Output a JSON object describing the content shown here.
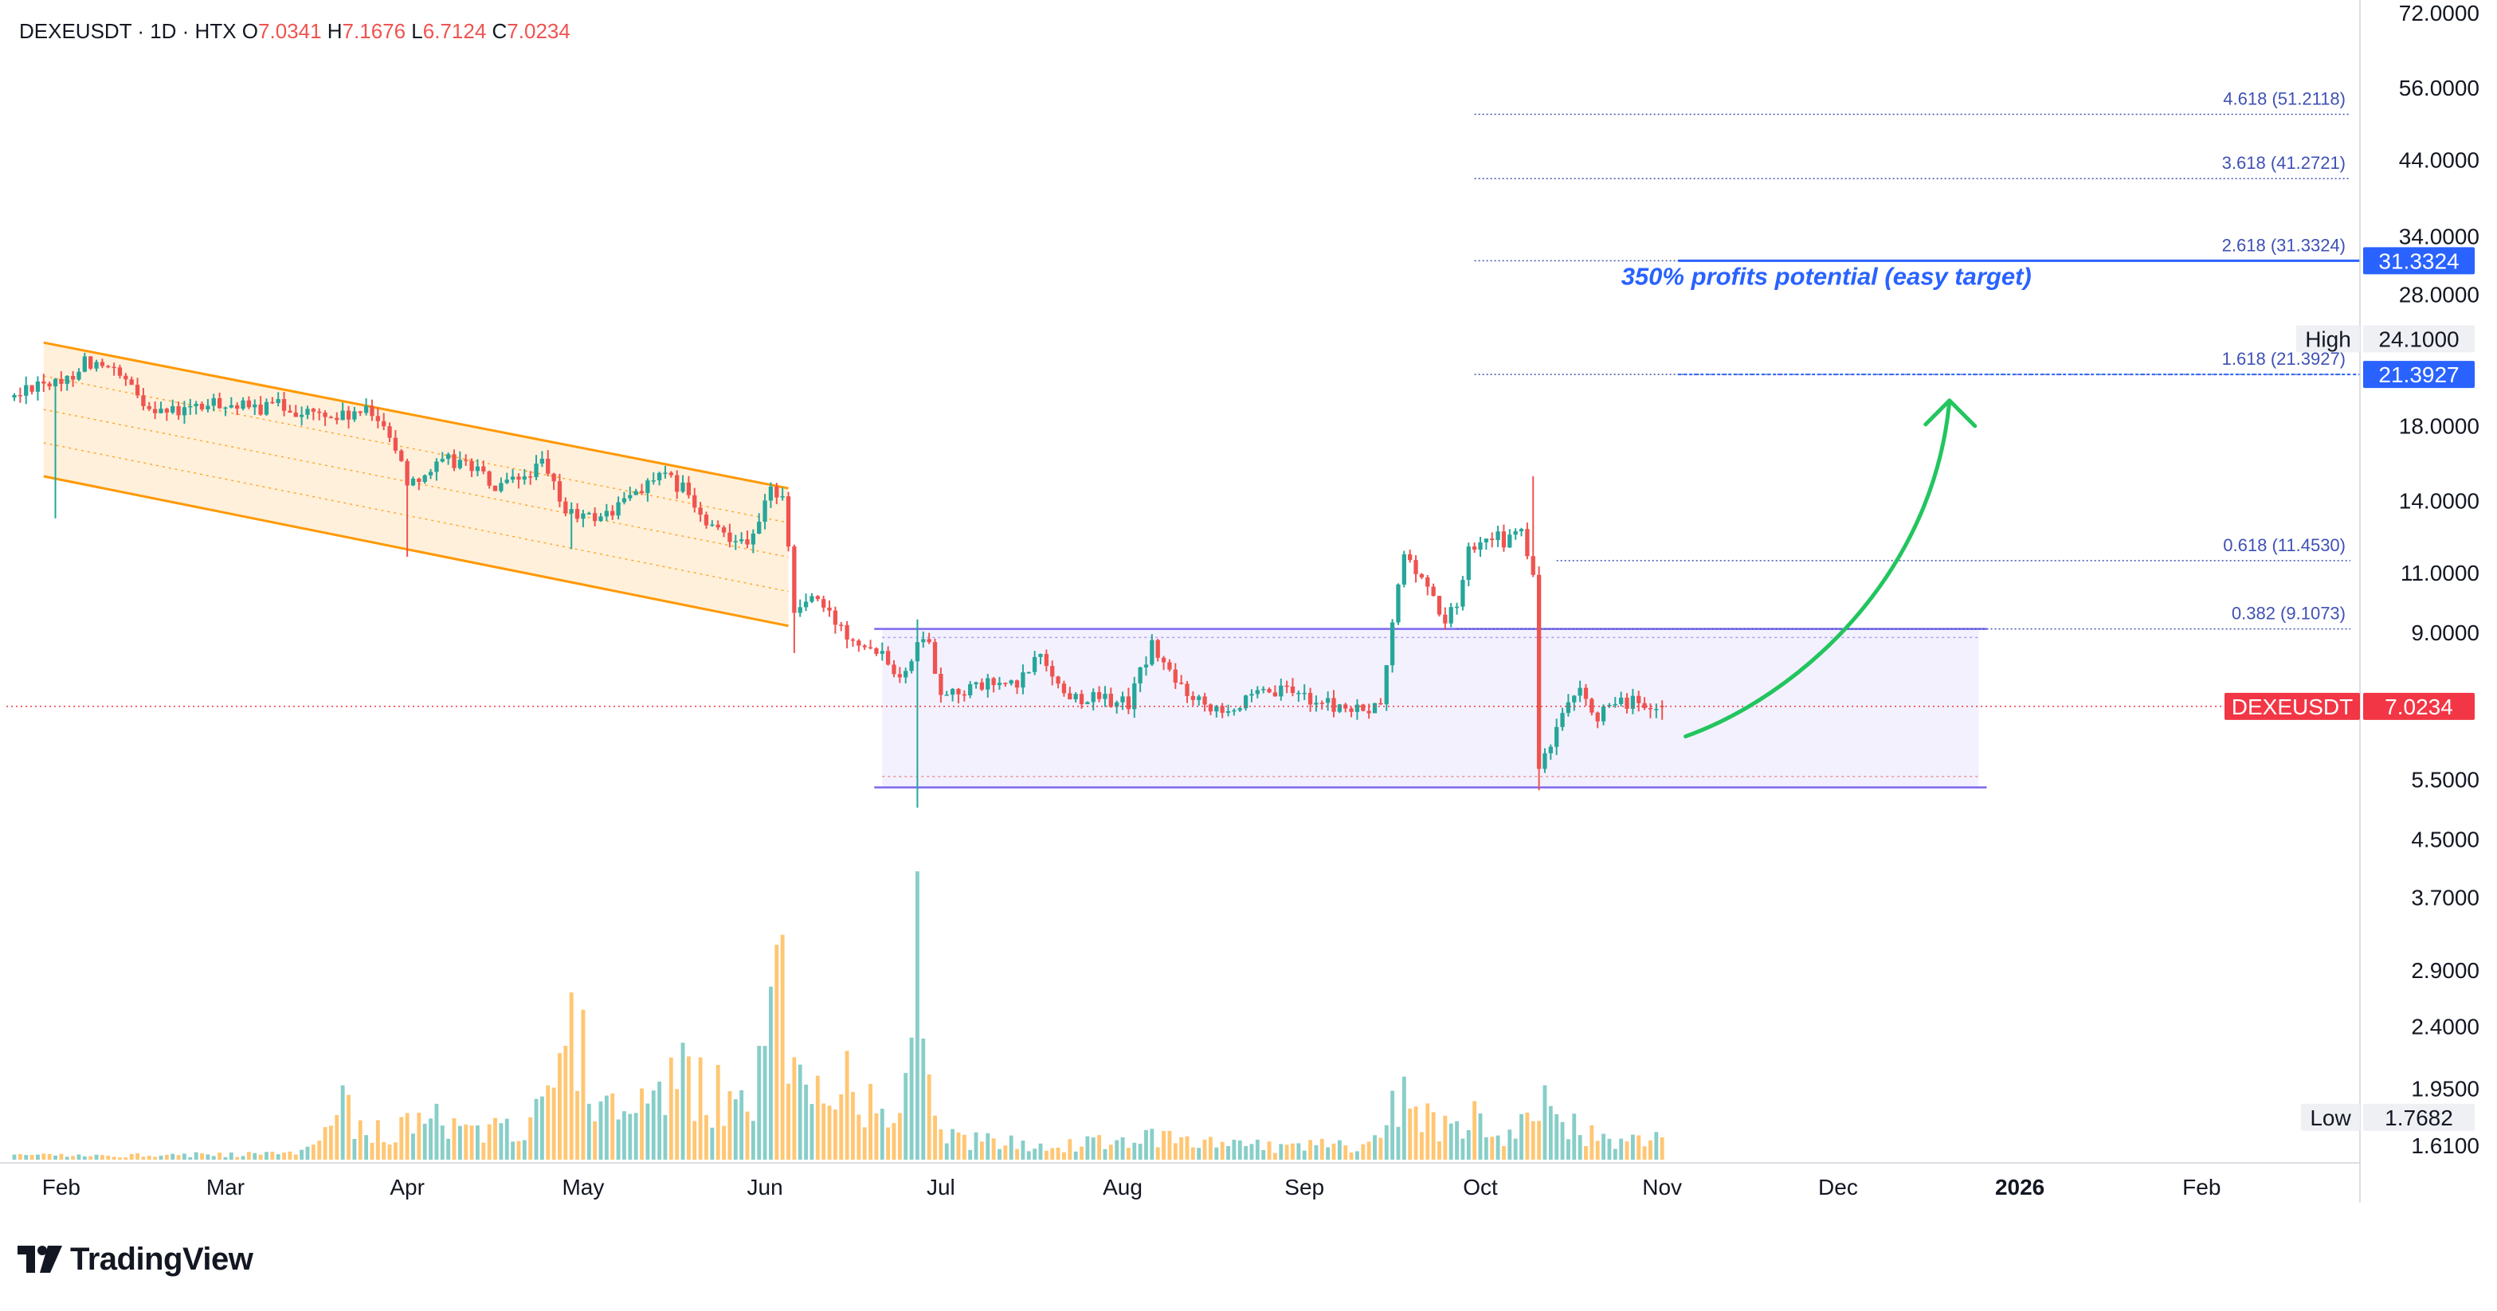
{
  "header": {
    "symbol": "DEXEUSDT · 1D · HTX",
    "o_label": "O",
    "o_value": "7.0341",
    "h_label": "H",
    "h_value": "7.1676",
    "l_label": "L",
    "l_value": "6.7124",
    "c_label": "C",
    "c_value": "7.0234"
  },
  "brand": {
    "name": "TradingView"
  },
  "colors": {
    "up": "#26a69a",
    "down": "#ef5350",
    "channel": "#ff9800",
    "fib": "#3f51b5",
    "range": "#7b68ee",
    "target_label": "#2962ff",
    "arrow": "#22c55e",
    "price_line": "#f23645"
  },
  "chart_data": {
    "type": "candlestick",
    "symbol": "DEXEUSDT",
    "timeframe": "1D",
    "exchange": "HTX",
    "y_scale": "log",
    "ylim": [
      1.61,
      72
    ],
    "xlim": [
      "2025-01-24",
      "2026-02-28"
    ],
    "y_ticks": [
      "72.0000",
      "56.0000",
      "44.0000",
      "34.0000",
      "28.0000",
      "18.0000",
      "14.0000",
      "11.0000",
      "9.0000",
      "5.5000",
      "4.5000",
      "3.7000",
      "2.9000",
      "2.4000",
      "1.9500",
      "1.6100"
    ],
    "x_ticks": [
      {
        "label": "Feb",
        "date": "2025-02-01",
        "bold": false
      },
      {
        "label": "Mar",
        "date": "2025-03-01",
        "bold": false
      },
      {
        "label": "Apr",
        "date": "2025-04-01",
        "bold": false
      },
      {
        "label": "May",
        "date": "2025-05-01",
        "bold": false
      },
      {
        "label": "Jun",
        "date": "2025-06-01",
        "bold": false
      },
      {
        "label": "Jul",
        "date": "2025-07-01",
        "bold": false
      },
      {
        "label": "Aug",
        "date": "2025-08-01",
        "bold": false
      },
      {
        "label": "Sep",
        "date": "2025-09-01",
        "bold": false
      },
      {
        "label": "Oct",
        "date": "2025-10-01",
        "bold": false
      },
      {
        "label": "Nov",
        "date": "2025-11-01",
        "bold": false
      },
      {
        "label": "Dec",
        "date": "2025-12-01",
        "bold": false
      },
      {
        "label": "2026",
        "date": "2026-01-01",
        "bold": true
      },
      {
        "label": "Feb",
        "date": "2026-02-01",
        "bold": false
      }
    ],
    "price_anchors": [
      [
        "2025-01-24",
        19.8
      ],
      [
        "2025-01-28",
        21.0
      ],
      [
        "2025-02-01",
        20.5
      ],
      [
        "2025-02-05",
        22.5
      ],
      [
        "2025-02-10",
        21.5
      ],
      [
        "2025-02-15",
        19.5
      ],
      [
        "2025-02-20",
        18.8
      ],
      [
        "2025-02-25",
        19.2
      ],
      [
        "2025-03-01",
        19.5
      ],
      [
        "2025-03-05",
        19.0
      ],
      [
        "2025-03-10",
        19.3
      ],
      [
        "2025-03-15",
        18.8
      ],
      [
        "2025-03-20",
        18.5
      ],
      [
        "2025-03-25",
        18.8
      ],
      [
        "2025-03-28",
        18.3
      ],
      [
        "2025-04-01",
        15.0
      ],
      [
        "2025-04-05",
        15.5
      ],
      [
        "2025-04-08",
        16.0
      ],
      [
        "2025-04-12",
        15.8
      ],
      [
        "2025-04-16",
        14.5
      ],
      [
        "2025-04-20",
        15.0
      ],
      [
        "2025-04-24",
        15.8
      ],
      [
        "2025-04-28",
        13.5
      ],
      [
        "2025-05-02",
        13.2
      ],
      [
        "2025-05-06",
        13.5
      ],
      [
        "2025-05-10",
        14.5
      ],
      [
        "2025-05-14",
        15.2
      ],
      [
        "2025-05-18",
        14.6
      ],
      [
        "2025-05-22",
        12.8
      ],
      [
        "2025-05-26",
        12.5
      ],
      [
        "2025-05-30",
        12.3
      ],
      [
        "2025-06-02",
        14.5
      ],
      [
        "2025-06-04",
        14.4
      ],
      [
        "2025-06-06",
        9.6
      ],
      [
        "2025-06-09",
        10.2
      ],
      [
        "2025-06-12",
        9.5
      ],
      [
        "2025-06-15",
        9.0
      ],
      [
        "2025-06-18",
        8.7
      ],
      [
        "2025-06-21",
        8.5
      ],
      [
        "2025-06-23",
        8.0
      ],
      [
        "2025-06-25",
        7.8
      ],
      [
        "2025-06-27",
        8.9
      ],
      [
        "2025-06-29",
        8.6
      ],
      [
        "2025-07-01",
        7.4
      ],
      [
        "2025-07-05",
        7.4
      ],
      [
        "2025-07-10",
        7.6
      ],
      [
        "2025-07-14",
        7.5
      ],
      [
        "2025-07-18",
        8.4
      ],
      [
        "2025-07-22",
        7.3
      ],
      [
        "2025-07-28",
        7.2
      ],
      [
        "2025-08-02",
        7.1
      ],
      [
        "2025-08-06",
        8.6
      ],
      [
        "2025-08-10",
        7.6
      ],
      [
        "2025-08-15",
        7.1
      ],
      [
        "2025-08-20",
        7.0
      ],
      [
        "2025-08-25",
        7.3
      ],
      [
        "2025-08-30",
        7.4
      ],
      [
        "2025-09-04",
        7.1
      ],
      [
        "2025-09-10",
        6.9
      ],
      [
        "2025-09-14",
        7.0
      ],
      [
        "2025-09-16",
        9.2
      ],
      [
        "2025-09-18",
        11.8
      ],
      [
        "2025-09-20",
        11.0
      ],
      [
        "2025-09-22",
        10.5
      ],
      [
        "2025-09-25",
        9.3
      ],
      [
        "2025-09-27",
        9.9
      ],
      [
        "2025-09-29",
        11.9
      ],
      [
        "2025-10-02",
        12.6
      ],
      [
        "2025-10-05",
        12.2
      ],
      [
        "2025-10-08",
        12.6
      ],
      [
        "2025-10-09",
        11.6
      ],
      [
        "2025-10-10",
        11.0
      ],
      [
        "2025-10-11",
        5.7
      ],
      [
        "2025-10-13",
        6.1
      ],
      [
        "2025-10-15",
        6.8
      ],
      [
        "2025-10-18",
        7.3
      ],
      [
        "2025-10-21",
        6.8
      ],
      [
        "2025-10-24",
        7.0
      ],
      [
        "2025-10-27",
        7.2
      ],
      [
        "2025-10-30",
        6.8
      ],
      [
        "2025-11-01",
        7.0234
      ]
    ],
    "wick_extremes": [
      {
        "date": "2025-01-31",
        "low": 13.2
      },
      {
        "date": "2025-04-01",
        "low": 11.6
      },
      {
        "date": "2025-04-29",
        "low": 11.9
      },
      {
        "date": "2025-06-06",
        "low": 8.4
      },
      {
        "date": "2025-06-27",
        "high": 9.4,
        "low": 5.0
      },
      {
        "date": "2025-10-10",
        "high": 15.2
      },
      {
        "date": "2025-10-11",
        "low": 5.3
      }
    ],
    "volume_anchors": [
      [
        "2025-01-24",
        0.015
      ],
      [
        "2025-03-10",
        0.02
      ],
      [
        "2025-03-17",
        0.05
      ],
      [
        "2025-03-21",
        0.2
      ],
      [
        "2025-03-24",
        0.13
      ],
      [
        "2025-03-28",
        0.1
      ],
      [
        "2025-04-03",
        0.16
      ],
      [
        "2025-04-10",
        0.11
      ],
      [
        "2025-04-20",
        0.12
      ],
      [
        "2025-04-25",
        0.18
      ],
      [
        "2025-04-29",
        0.4
      ],
      [
        "2025-05-03",
        0.22
      ],
      [
        "2025-05-08",
        0.28
      ],
      [
        "2025-05-13",
        0.18
      ],
      [
        "2025-05-18",
        0.3
      ],
      [
        "2025-05-25",
        0.22
      ],
      [
        "2025-05-31",
        0.3
      ],
      [
        "2025-06-04",
        0.65
      ],
      [
        "2025-06-08",
        0.28
      ],
      [
        "2025-06-13",
        0.3
      ],
      [
        "2025-06-18",
        0.22
      ],
      [
        "2025-06-23",
        0.12
      ],
      [
        "2025-06-27",
        0.35
      ],
      [
        "2025-07-02",
        0.08
      ],
      [
        "2025-07-15",
        0.06
      ],
      [
        "2025-07-22",
        0.05
      ],
      [
        "2025-08-06",
        0.08
      ],
      [
        "2025-08-20",
        0.05
      ],
      [
        "2025-09-10",
        0.05
      ],
      [
        "2025-09-14",
        0.08
      ],
      [
        "2025-09-17",
        0.24
      ],
      [
        "2025-09-20",
        0.2
      ],
      [
        "2025-09-25",
        0.12
      ],
      [
        "2025-09-30",
        0.15
      ],
      [
        "2025-10-05",
        0.1
      ],
      [
        "2025-10-10",
        0.15
      ],
      [
        "2025-10-12",
        0.22
      ],
      [
        "2025-10-16",
        0.12
      ],
      [
        "2025-10-22",
        0.08
      ],
      [
        "2025-11-01",
        0.08
      ]
    ],
    "volume_spikes": [
      {
        "date": "2025-06-02",
        "value": 0.6,
        "up": true
      },
      {
        "date": "2025-06-04",
        "value": 0.78,
        "up": false
      },
      {
        "date": "2025-06-27",
        "value": 1.0,
        "up": true
      },
      {
        "date": "2025-06-28",
        "value": 0.42,
        "up": true
      },
      {
        "date": "2025-04-29",
        "value": 0.58,
        "up": false
      },
      {
        "date": "2025-05-01",
        "value": 0.52,
        "up": false
      }
    ],
    "channel": {
      "upper": [
        [
          "2025-01-29",
          23.8
        ],
        [
          "2025-06-05",
          14.6
        ]
      ],
      "lower": [
        [
          "2025-01-29",
          15.2
        ],
        [
          "2025-06-05",
          9.2
        ]
      ]
    },
    "range_box": {
      "x0": "2025-06-21",
      "x1": "2025-12-25",
      "top": 9.1073,
      "bottom": 5.35
    },
    "fib_levels": [
      {
        "ratio": "4.618",
        "price": 51.2118,
        "label": "4.618 (51.2118)"
      },
      {
        "ratio": "3.618",
        "price": 41.2721,
        "label": "3.618 (41.2721)"
      },
      {
        "ratio": "2.618",
        "price": 31.3324,
        "label": "2.618 (31.3324)"
      },
      {
        "ratio": "1.618",
        "price": 21.3927,
        "label": "1.618 (21.3927)"
      },
      {
        "ratio": "0.618",
        "price": 11.453,
        "label": "0.618 (11.4530)"
      },
      {
        "ratio": "0.382",
        "price": 9.1073,
        "label": "0.382 (9.1073)"
      }
    ],
    "target_lines": [
      {
        "price": 31.3324,
        "label": "31.3324",
        "x0": "2025-11-01"
      },
      {
        "price": 21.3927,
        "label": "21.3927",
        "x0": "2025-11-01"
      }
    ],
    "high": {
      "label": "High",
      "value": "24.1000",
      "price": 24.1
    },
    "low": {
      "label": "Low",
      "value": "1.7682",
      "price": 1.7682
    },
    "last_price": {
      "symbol": "DEXEUSDT",
      "value": "7.0234",
      "price": 7.0234
    },
    "annotation": {
      "text": "350% profits potential (easy target)"
    }
  }
}
